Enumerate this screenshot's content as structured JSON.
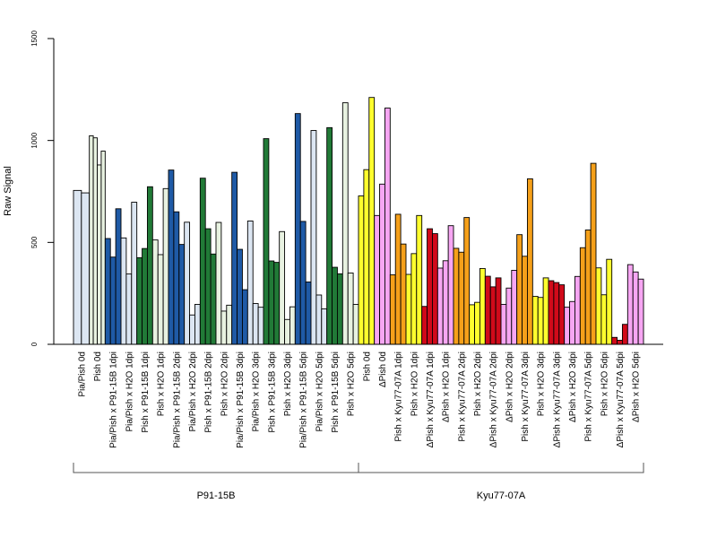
{
  "chart_data": {
    "type": "bar",
    "ylabel": "Raw Signal",
    "ylim": [
      0,
      1500
    ],
    "yticks": [
      "0",
      "500",
      "1000",
      "1500"
    ],
    "categories": [
      "Pia/Pish 0d",
      "Pish 0d",
      "Pia/Pish x P91-15B 1dpi",
      "Pia/Pish x H2O 1dpi",
      "Pish x P91-15B 1dpi",
      "Pish x H2O 1dpi",
      "Pia/Pish x P91-15B 2dpi",
      "Pia/Pish x H2O 2dpi",
      "Pish x P91-15B 2dpi",
      "Pish x H2O 2dpi",
      "Pia/Pish x P91-15B 3dpi",
      "Pia/Pish x H2O 3dpi",
      "Pish x P91-15B 3dpi",
      "Pish x H2O 3dpi",
      "Pia/Pish x P91-15B 5dpi",
      "Pia/Pish x H2O 5dpi",
      "Pish x P91-15B 5dpi",
      "Pish x H2O 5dpi",
      "Pish 0d",
      "ΔPish 0d",
      "Pish x Kyu77-07A 1dpi",
      "Pish x H2O 1dpi",
      "ΔPish x Kyu77-07A 1dpi",
      "ΔPish x H2O 1dpi",
      "Pish x Kyu77-07A 2dpi",
      "Pish x H2O 2dpi",
      "ΔPish x Kyu77-07A 2dpi",
      "ΔPish x H2O 2dpi",
      "Pish x Kyu77-07A 3dpi",
      "Pish x H2O 3dpi",
      "ΔPish x Kyu77-07A 3dpi",
      "ΔPish x H2O 3dpi",
      "Pish x Kyu77-07A 5dpi",
      "Pish x H2O 5dpi",
      "ΔPish x Kyu77-07A 5dpi",
      "ΔPish x H2O 5dpi"
    ],
    "bars": [
      {
        "values": [
          755,
          743
        ],
        "color": "#dce6f2"
      },
      {
        "values": [
          1023,
          1013,
          880,
          948
        ],
        "color": "#e8f2e1"
      },
      {
        "values": [
          519,
          428,
          665
        ],
        "color": "#1f5aa6"
      },
      {
        "values": [
          522,
          345,
          697
        ],
        "color": "#dce6f2"
      },
      {
        "values": [
          425,
          470,
          773
        ],
        "color": "#217a37"
      },
      {
        "values": [
          512,
          440,
          764
        ],
        "color": "#e8f2e1"
      },
      {
        "values": [
          855,
          650,
          490
        ],
        "color": "#1f5aa6"
      },
      {
        "values": [
          599,
          144,
          196
        ],
        "color": "#dce6f2"
      },
      {
        "values": [
          815,
          567,
          443
        ],
        "color": "#217a37"
      },
      {
        "values": [
          598,
          163,
          192
        ],
        "color": "#e8f2e1"
      },
      {
        "values": [
          844,
          466,
          268
        ],
        "color": "#1f5aa6"
      },
      {
        "values": [
          605,
          200,
          182
        ],
        "color": "#dce6f2"
      },
      {
        "values": [
          1009,
          409,
          402
        ],
        "color": "#217a37"
      },
      {
        "values": [
          553,
          122,
          184
        ],
        "color": "#e8f2e1"
      },
      {
        "values": [
          1132,
          603,
          306
        ],
        "color": "#1f5aa6"
      },
      {
        "values": [
          1049,
          242,
          174
        ],
        "color": "#dce6f2"
      },
      {
        "values": [
          1063,
          378,
          346
        ],
        "color": "#217a37"
      },
      {
        "values": [
          1185,
          350,
          196
        ],
        "color": "#e8f2e1"
      },
      {
        "values": [
          728,
          857,
          1211
        ],
        "color": "#ffff2e"
      },
      {
        "values": [
          632,
          786,
          1159
        ],
        "color": "#f7a6f3"
      },
      {
        "values": [
          341,
          638,
          492
        ],
        "color": "#f5a01a"
      },
      {
        "values": [
          343,
          445,
          632
        ],
        "color": "#ffff2e"
      },
      {
        "values": [
          186,
          567,
          543
        ],
        "color": "#d10a1a"
      },
      {
        "values": [
          374,
          410,
          582
        ],
        "color": "#f7a6f3"
      },
      {
        "values": [
          471,
          452,
          622
        ],
        "color": "#f5a01a"
      },
      {
        "values": [
          194,
          206,
          372
        ],
        "color": "#ffff2e"
      },
      {
        "values": [
          334,
          282,
          326
        ],
        "color": "#d10a1a"
      },
      {
        "values": [
          196,
          276,
          363
        ],
        "color": "#f7a6f3"
      },
      {
        "values": [
          538,
          432,
          812
        ],
        "color": "#f5a01a"
      },
      {
        "values": [
          235,
          230,
          326
        ],
        "color": "#ffff2e"
      },
      {
        "values": [
          312,
          303,
          292
        ],
        "color": "#d10a1a"
      },
      {
        "values": [
          182,
          210,
          333
        ],
        "color": "#f7a6f3"
      },
      {
        "values": [
          474,
          561,
          888
        ],
        "color": "#f5a01a"
      },
      {
        "values": [
          375,
          243,
          417
        ],
        "color": "#ffff2e"
      },
      {
        "values": [
          34,
          20,
          98
        ],
        "color": "#d10a1a"
      },
      {
        "values": [
          391,
          355,
          320
        ],
        "color": "#f7a6f3"
      }
    ],
    "groups": [
      {
        "label": "P91-15B",
        "first": 0,
        "last": 17
      },
      {
        "label": "Kyu77-07A",
        "first": 18,
        "last": 35
      }
    ]
  }
}
